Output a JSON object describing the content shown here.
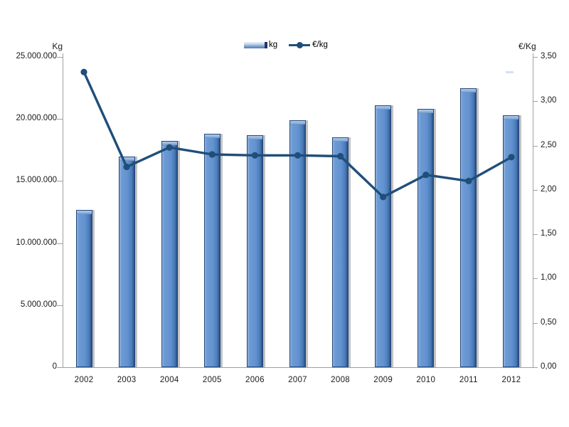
{
  "chart_data": {
    "type": "combo-bar-line",
    "title": "",
    "categories": [
      "2002",
      "2003",
      "2004",
      "2005",
      "2006",
      "2007",
      "2008",
      "2009",
      "2010",
      "2011",
      "2012"
    ],
    "series": [
      {
        "name": "kg",
        "type": "bar",
        "axis": "left",
        "values": [
          12700000,
          17000000,
          18250000,
          18800000,
          18700000,
          19900000,
          18500000,
          21100000,
          20800000,
          22500000,
          20300000
        ]
      },
      {
        "name": "€/kg",
        "type": "line",
        "axis": "right",
        "values": [
          3.33,
          2.26,
          2.48,
          2.4,
          2.39,
          2.39,
          2.38,
          1.92,
          2.17,
          2.1,
          2.37
        ]
      }
    ],
    "left_axis": {
      "title": "Kg",
      "min": 0,
      "max": 25000000,
      "tick_step": 5000000,
      "tick_labels": [
        "0",
        "5.000.000",
        "10.000.000",
        "15.000.000",
        "20.000.000",
        "25.000.000"
      ]
    },
    "right_axis": {
      "title": "€/Kg",
      "min": 0,
      "max": 3.5,
      "tick_step": 0.5,
      "tick_labels": [
        "0,00",
        "0,50",
        "1,00",
        "1,50",
        "2,00",
        "2,50",
        "3,00",
        "3,50"
      ]
    },
    "legend": {
      "position": "top-center",
      "entries": [
        {
          "label": "kg",
          "marker": "bar"
        },
        {
          "label": "€/kg",
          "marker": "line-dot"
        }
      ]
    },
    "grid": false,
    "colors": {
      "bar_fill": "#6292CF",
      "bar_highlight": "#8FB3E0",
      "bar_dark": "#27497A",
      "bar_border": "#24477A",
      "line": "#1F4E79",
      "axis": "#A0A0A0",
      "text": "#1A1A1A"
    }
  }
}
